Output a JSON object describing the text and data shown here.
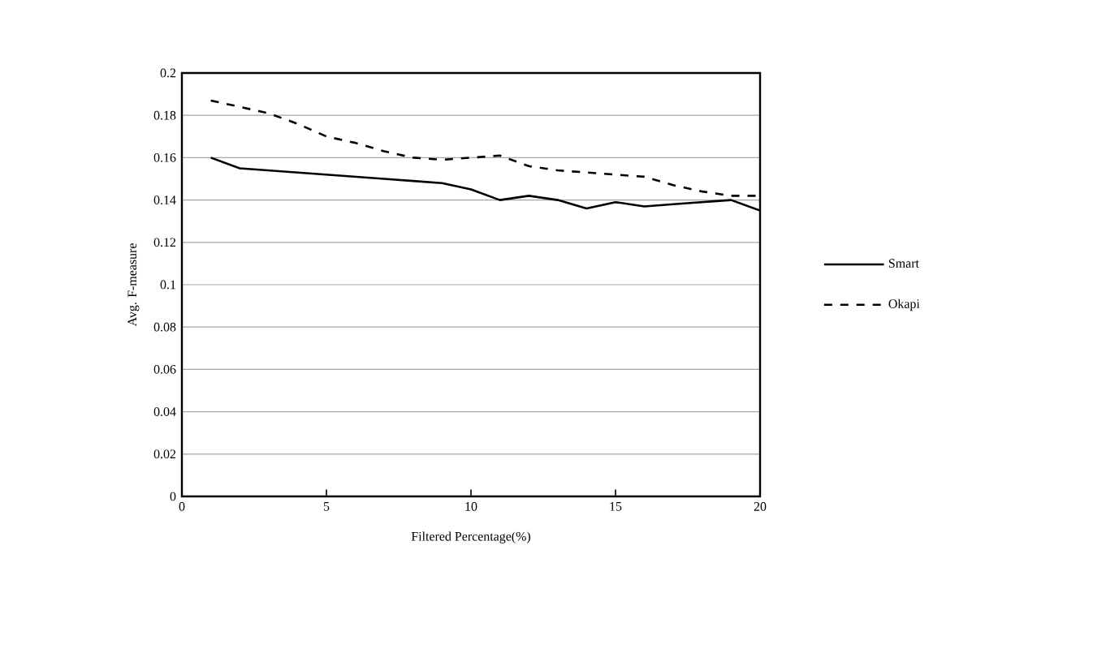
{
  "chart_data": {
    "type": "line",
    "xlabel": "Filtered Percentage(%)",
    "ylabel": "Avg. F-measure",
    "x": [
      1,
      2,
      3,
      4,
      5,
      6,
      7,
      8,
      9,
      10,
      11,
      12,
      13,
      14,
      15,
      16,
      17,
      18,
      19,
      20
    ],
    "series": [
      {
        "name": "Smart",
        "color": "#000000",
        "line_style": "solid",
        "values": [
          0.16,
          0.155,
          0.154,
          0.153,
          0.152,
          0.151,
          0.15,
          0.149,
          0.148,
          0.145,
          0.14,
          0.142,
          0.14,
          0.136,
          0.139,
          0.137,
          0.138,
          0.139,
          0.14,
          0.135
        ]
      },
      {
        "name": "Okapi",
        "color": "#000000",
        "line_style": "dashed",
        "values": [
          0.187,
          0.184,
          0.181,
          0.176,
          0.17,
          0.167,
          0.163,
          0.16,
          0.159,
          0.16,
          0.161,
          0.156,
          0.154,
          0.153,
          0.152,
          0.151,
          0.147,
          0.144,
          0.142,
          0.142
        ]
      }
    ],
    "xlim": [
      0,
      20
    ],
    "xticks": [
      0,
      5,
      10,
      15,
      20
    ],
    "ylim": [
      0,
      0.2
    ],
    "yticks": [
      0,
      0.02,
      0.04,
      0.06,
      0.08,
      0.1,
      0.12,
      0.14,
      0.16,
      0.18,
      0.2
    ],
    "grid": "y",
    "legend": "right",
    "marker": "none"
  }
}
